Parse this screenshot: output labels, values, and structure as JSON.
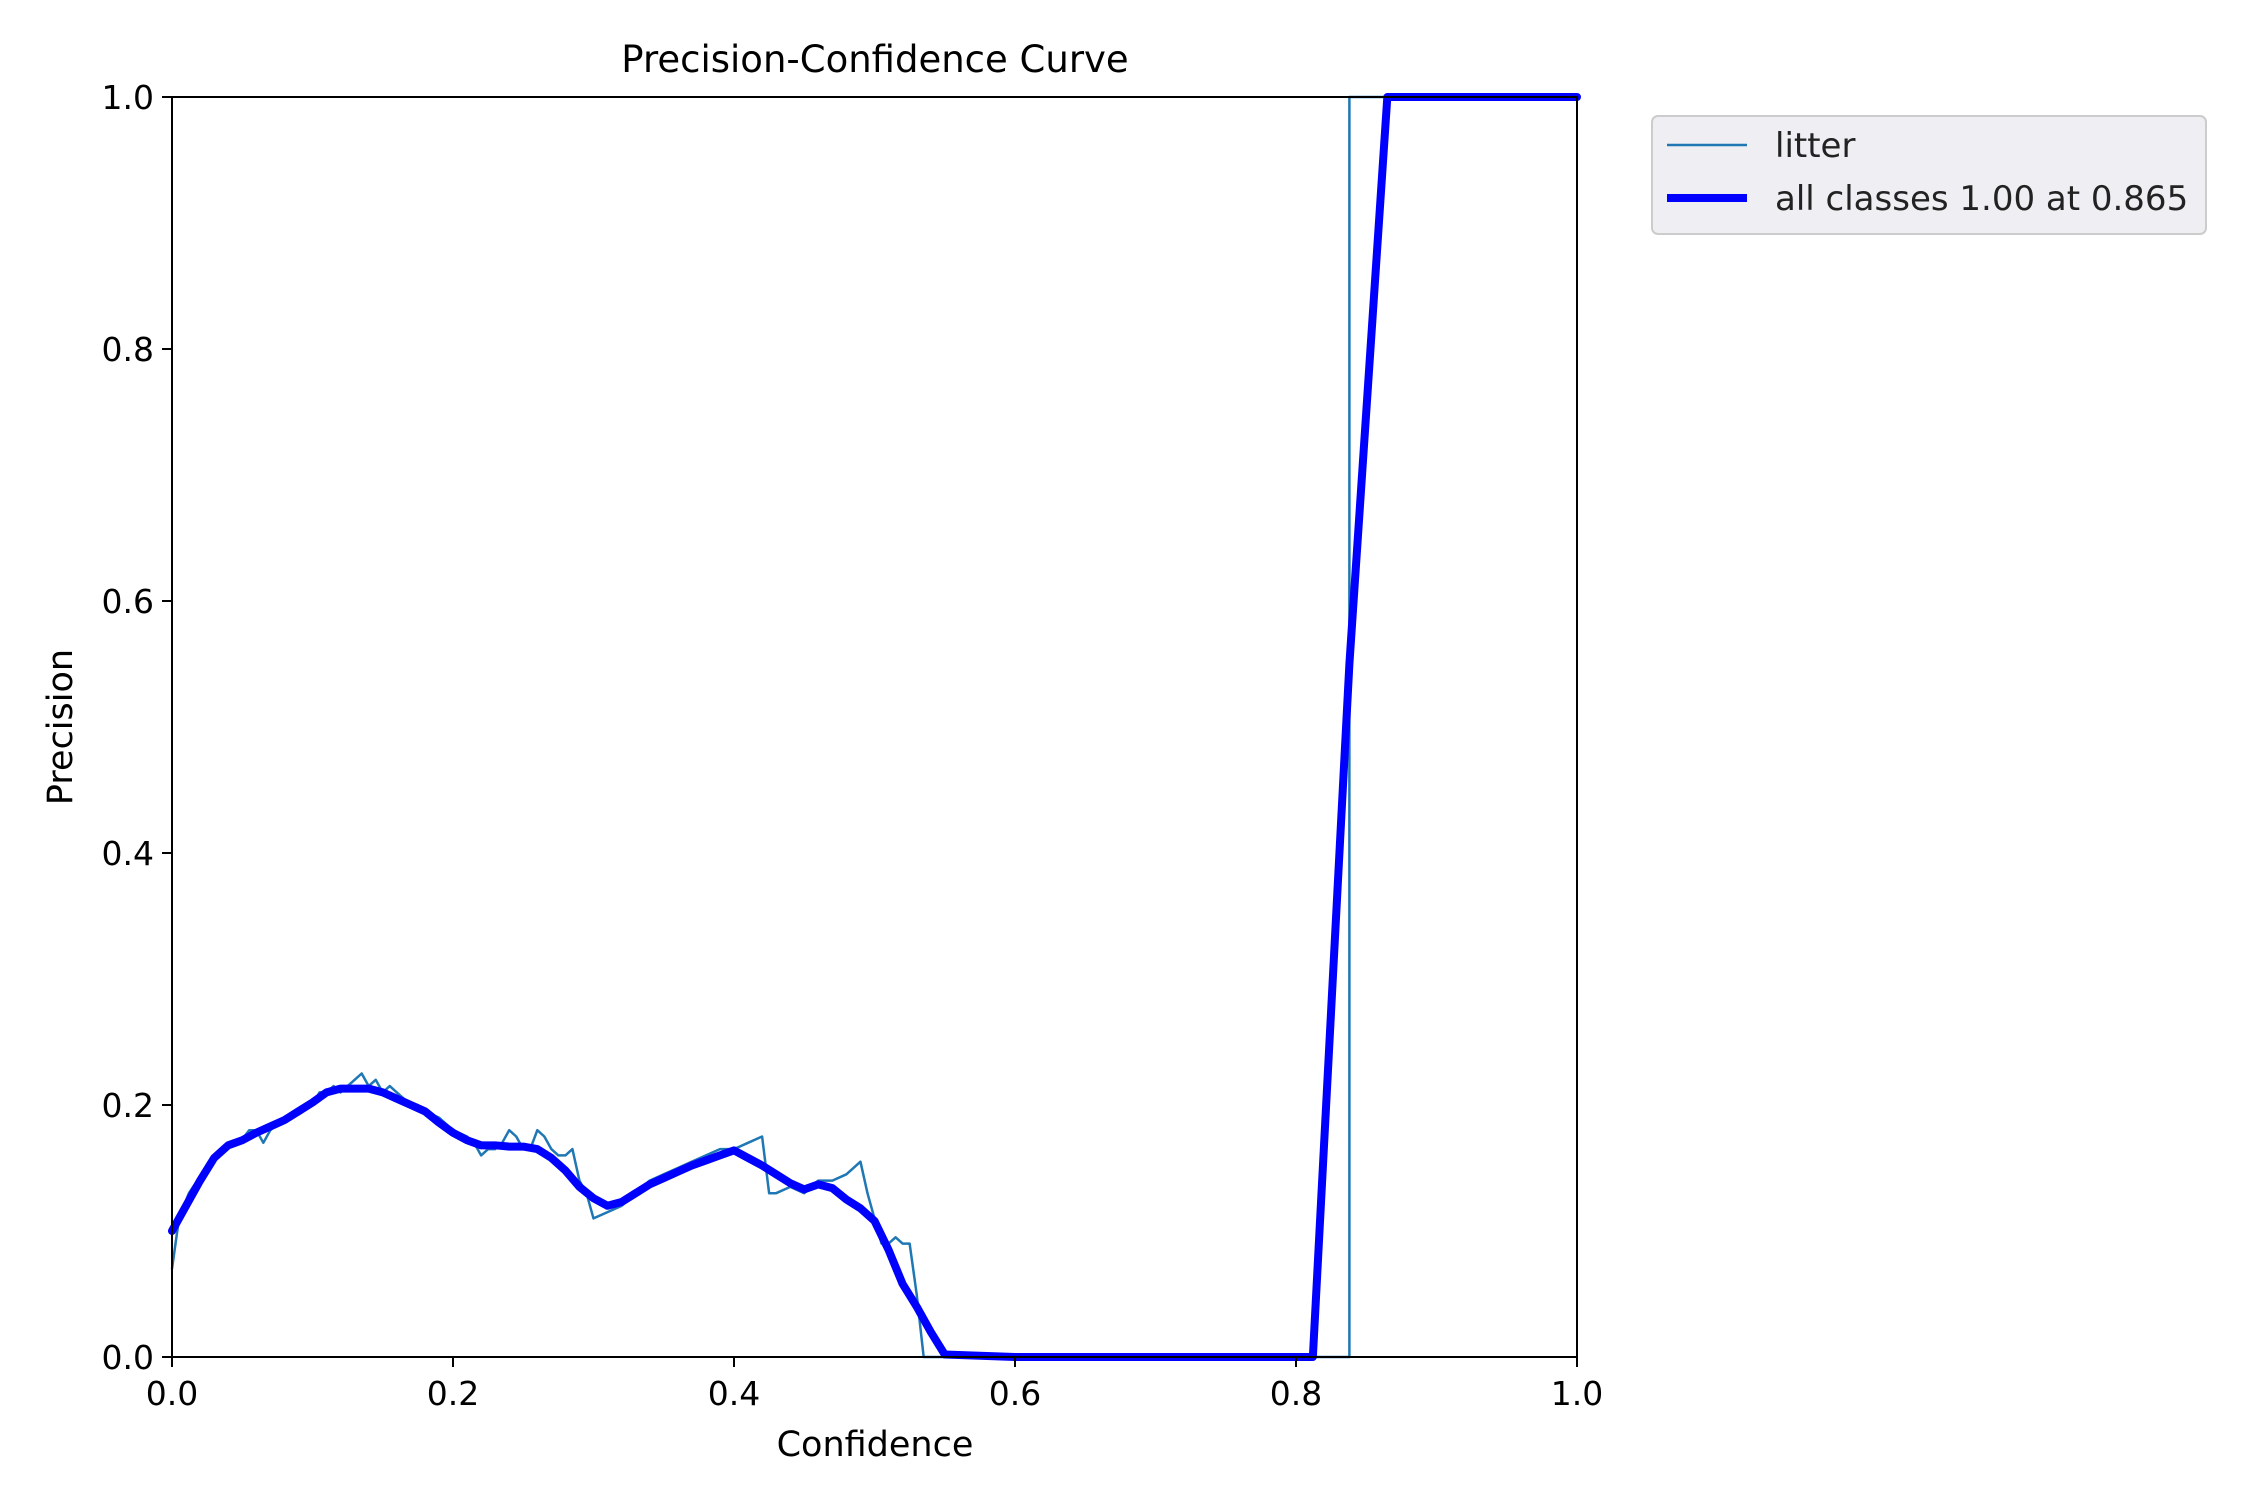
{
  "chart_data": {
    "type": "line",
    "title": "Precision-Confidence Curve",
    "xlabel": "Confidence",
    "ylabel": "Precision",
    "xlim": [
      0.0,
      1.0
    ],
    "ylim": [
      0.0,
      1.0
    ],
    "xticks": [
      "0.0",
      "0.2",
      "0.4",
      "0.6",
      "0.8",
      "1.0"
    ],
    "yticks": [
      "0.0",
      "0.2",
      "0.4",
      "0.6",
      "0.8",
      "1.0"
    ],
    "grid": false,
    "legend_position": "outside-upper-right",
    "series": [
      {
        "name": "litter",
        "color": "#1f77b4",
        "style": "thin",
        "x": [
          0.0,
          0.005,
          0.012,
          0.018,
          0.024,
          0.03,
          0.036,
          0.042,
          0.048,
          0.055,
          0.06,
          0.065,
          0.07,
          0.075,
          0.08,
          0.085,
          0.09,
          0.1,
          0.105,
          0.11,
          0.115,
          0.12,
          0.125,
          0.13,
          0.135,
          0.14,
          0.145,
          0.15,
          0.155,
          0.16,
          0.165,
          0.17,
          0.175,
          0.18,
          0.19,
          0.2,
          0.21,
          0.215,
          0.22,
          0.225,
          0.23,
          0.235,
          0.24,
          0.245,
          0.25,
          0.255,
          0.26,
          0.265,
          0.27,
          0.275,
          0.28,
          0.285,
          0.29,
          0.295,
          0.3,
          0.31,
          0.32,
          0.33,
          0.34,
          0.35,
          0.36,
          0.37,
          0.38,
          0.39,
          0.4,
          0.41,
          0.42,
          0.425,
          0.43,
          0.44,
          0.45,
          0.46,
          0.47,
          0.48,
          0.49,
          0.495,
          0.5,
          0.505,
          0.51,
          0.515,
          0.52,
          0.525,
          0.53,
          0.535,
          0.54,
          0.55,
          0.6,
          0.7,
          0.8,
          0.838,
          0.838,
          0.85,
          0.9,
          1.0
        ],
        "y": [
          0.07,
          0.11,
          0.13,
          0.14,
          0.15,
          0.16,
          0.165,
          0.17,
          0.17,
          0.18,
          0.18,
          0.17,
          0.18,
          0.185,
          0.19,
          0.19,
          0.195,
          0.2,
          0.21,
          0.21,
          0.215,
          0.21,
          0.215,
          0.22,
          0.225,
          0.215,
          0.22,
          0.21,
          0.215,
          0.21,
          0.205,
          0.2,
          0.2,
          0.195,
          0.19,
          0.18,
          0.175,
          0.17,
          0.16,
          0.165,
          0.165,
          0.17,
          0.18,
          0.175,
          0.165,
          0.165,
          0.18,
          0.175,
          0.165,
          0.16,
          0.16,
          0.165,
          0.14,
          0.13,
          0.11,
          0.115,
          0.12,
          0.13,
          0.14,
          0.145,
          0.15,
          0.155,
          0.16,
          0.165,
          0.165,
          0.17,
          0.175,
          0.13,
          0.13,
          0.135,
          0.13,
          0.14,
          0.14,
          0.145,
          0.155,
          0.13,
          0.11,
          0.09,
          0.09,
          0.095,
          0.09,
          0.09,
          0.05,
          0.0,
          0.0,
          0.0,
          0.0,
          0.0,
          0.0,
          0.0,
          1.0,
          1.0,
          1.0,
          1.0
        ]
      },
      {
        "name": "all classes 1.00 at 0.865",
        "color": "#0000ff",
        "style": "thick",
        "x": [
          0.0,
          0.01,
          0.02,
          0.03,
          0.04,
          0.05,
          0.06,
          0.07,
          0.08,
          0.09,
          0.1,
          0.11,
          0.12,
          0.13,
          0.14,
          0.15,
          0.16,
          0.17,
          0.18,
          0.19,
          0.2,
          0.21,
          0.22,
          0.23,
          0.24,
          0.25,
          0.26,
          0.27,
          0.28,
          0.29,
          0.3,
          0.31,
          0.32,
          0.33,
          0.34,
          0.35,
          0.36,
          0.37,
          0.38,
          0.39,
          0.4,
          0.41,
          0.42,
          0.43,
          0.44,
          0.45,
          0.46,
          0.47,
          0.48,
          0.49,
          0.5,
          0.51,
          0.52,
          0.53,
          0.54,
          0.55,
          0.6,
          0.7,
          0.8,
          0.812,
          0.838,
          0.865,
          0.9,
          1.0
        ],
        "y": [
          0.1,
          0.12,
          0.14,
          0.158,
          0.168,
          0.172,
          0.178,
          0.183,
          0.188,
          0.195,
          0.202,
          0.21,
          0.213,
          0.213,
          0.213,
          0.21,
          0.205,
          0.2,
          0.195,
          0.186,
          0.178,
          0.172,
          0.168,
          0.168,
          0.167,
          0.167,
          0.165,
          0.158,
          0.148,
          0.135,
          0.126,
          0.12,
          0.123,
          0.13,
          0.137,
          0.142,
          0.147,
          0.152,
          0.156,
          0.16,
          0.164,
          0.158,
          0.152,
          0.145,
          0.138,
          0.133,
          0.137,
          0.134,
          0.125,
          0.118,
          0.108,
          0.085,
          0.058,
          0.04,
          0.02,
          0.002,
          0.0,
          0.0,
          0.0,
          0.0,
          0.55,
          1.0,
          1.0,
          1.0
        ]
      }
    ]
  }
}
